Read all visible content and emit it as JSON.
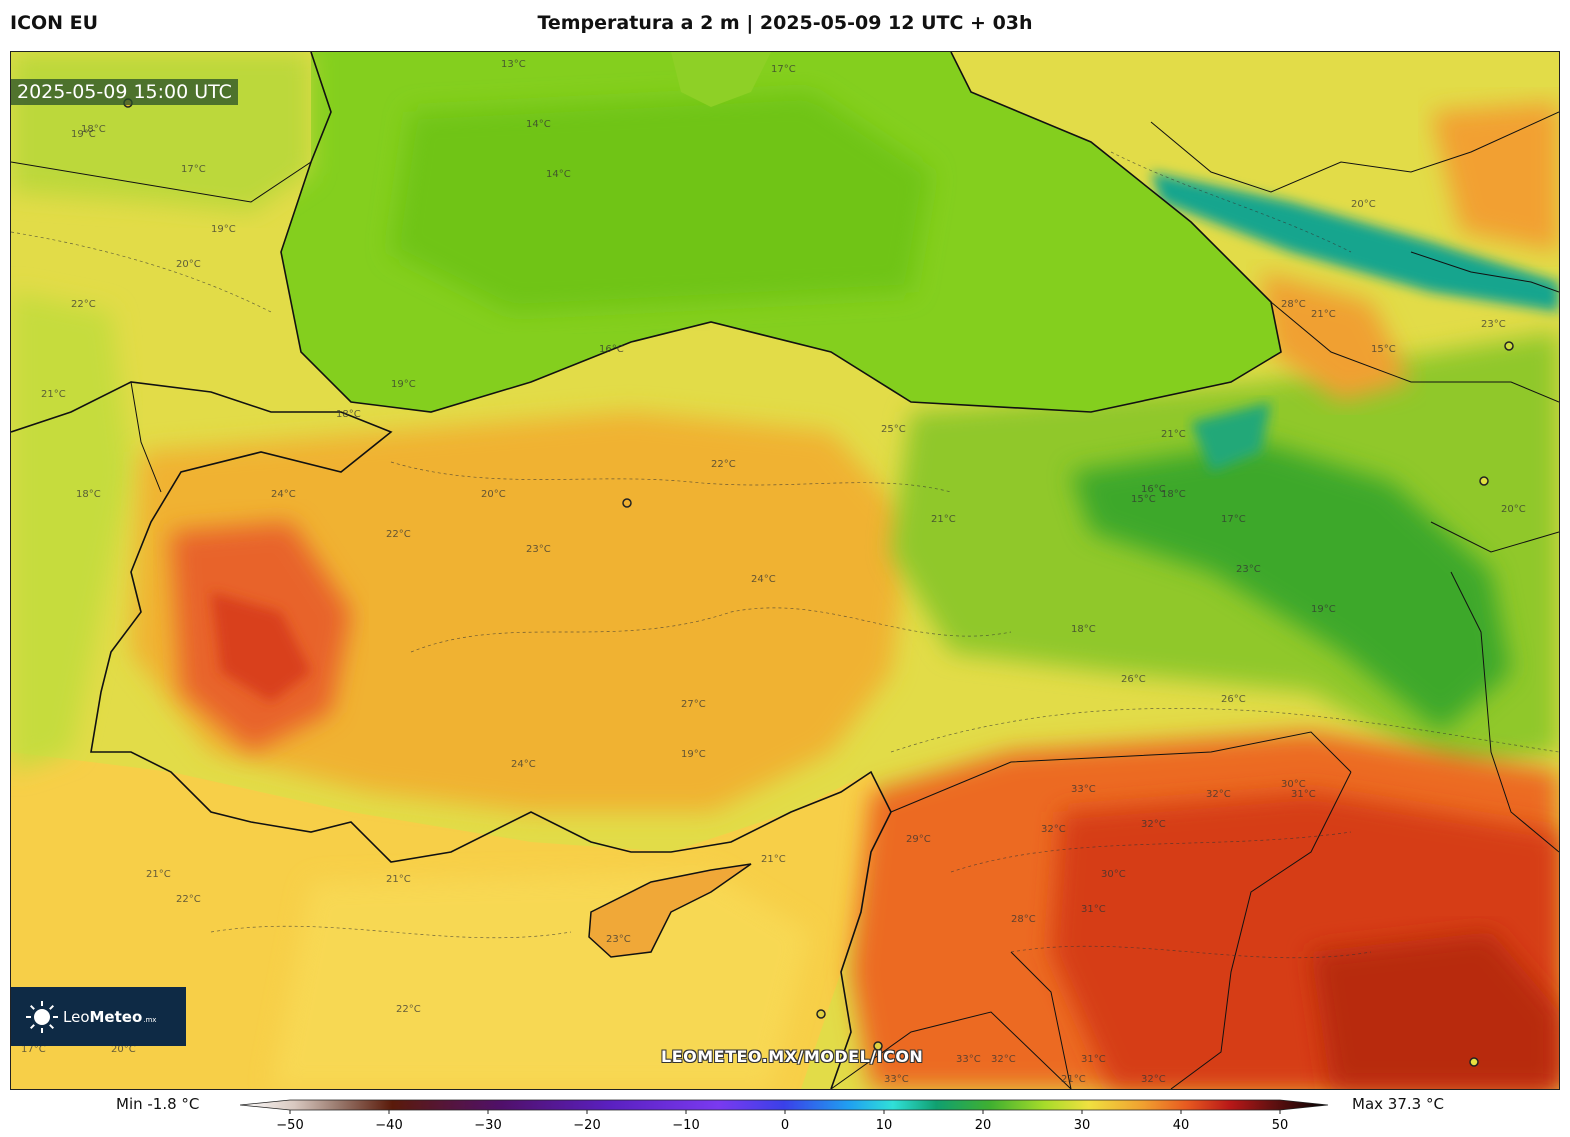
{
  "header": {
    "model": "ICON EU",
    "title": "Temperatura a 2 m | 2025-05-09 12 UTC + 03h"
  },
  "map": {
    "valid_time": "2025-05-09 15:00 UTC",
    "watermark": "LEOMETEO.MX/MODEL/ICON",
    "logo": {
      "name_light": "Leo",
      "name_bold": "Meteo",
      "suffix": ".mx"
    },
    "contour_labels": [
      "13°C",
      "14°C",
      "14°C",
      "17°C",
      "17°C",
      "18°C",
      "19°C",
      "19°C",
      "20°C",
      "22°C",
      "21°C",
      "18°C",
      "16°C",
      "19°C",
      "18°C",
      "24°C",
      "22°C",
      "20°C",
      "23°C",
      "24°C",
      "22°C",
      "25°C",
      "21°C",
      "27°C",
      "24°C",
      "19°C",
      "23°C",
      "21°C",
      "16°C",
      "17°C",
      "15°C",
      "26°C",
      "20°C",
      "18°C",
      "28°C",
      "21°C",
      "26°C",
      "23°C",
      "19°C",
      "15°C",
      "20°C",
      "18°C",
      "33°C",
      "32°C",
      "32°C",
      "30°C",
      "28°C",
      "33°C",
      "31°C",
      "32°C",
      "31°C",
      "29°C",
      "31°C",
      "32°C",
      "32°C",
      "30°C",
      "21°C",
      "33°C",
      "21°C",
      "22°C",
      "21°C",
      "23°C",
      "22°C",
      "21°C",
      "20°C",
      "17°C"
    ],
    "colors": {
      "sea_north": "#7ed321",
      "land_cool": "#a8d82c",
      "land_mild": "#e8e040",
      "land_warm": "#f0b030",
      "land_hot": "#ee7b25",
      "land_very_hot": "#d9441a",
      "highland": "#3da82c",
      "mountain_cold": "#1aa58c",
      "sea_south": "#f6cc46"
    }
  },
  "legend": {
    "min_label": "Min -1.8 °C",
    "max_label": "Max 37.3 °C",
    "ticks": [
      -50,
      -40,
      -30,
      -20,
      -10,
      0,
      10,
      20,
      30,
      40,
      50
    ],
    "range": [
      -50,
      50
    ]
  }
}
